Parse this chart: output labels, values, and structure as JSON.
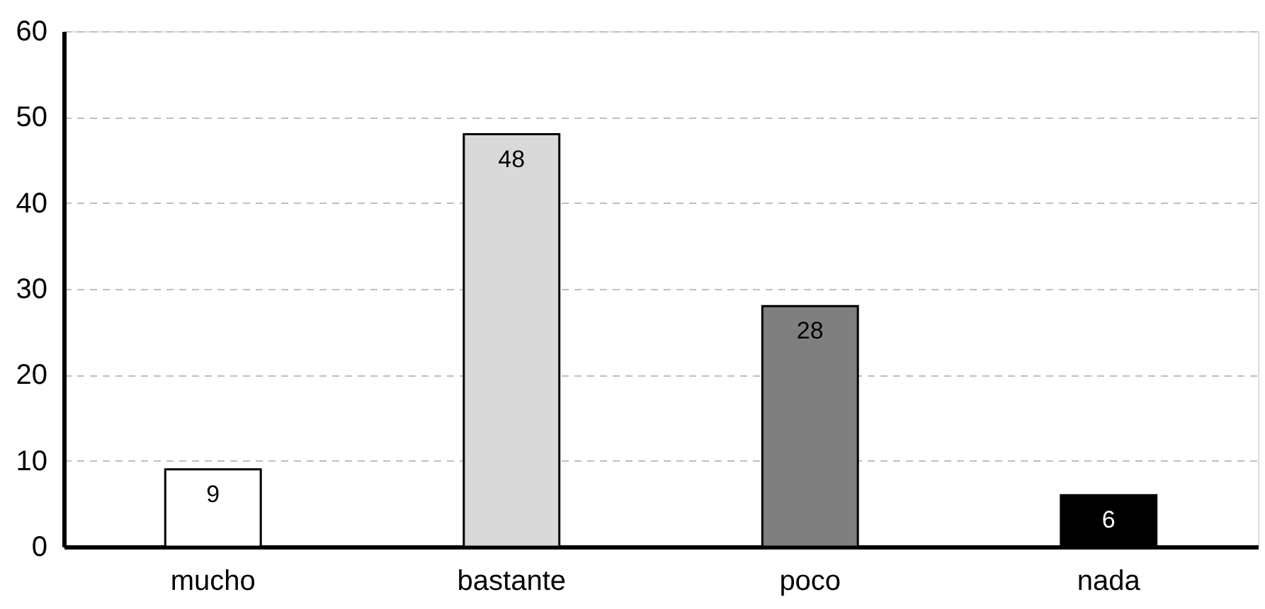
{
  "chart_data": {
    "type": "bar",
    "categories": [
      "mucho",
      "bastante",
      "poco",
      "nada"
    ],
    "values": [
      9,
      48,
      28,
      6
    ],
    "colors": [
      "#ffffff",
      "#d9d9d9",
      "#7f7f7f",
      "#000000"
    ],
    "ylim": [
      0,
      60
    ],
    "yticks": [
      0,
      10,
      20,
      30,
      40,
      50,
      60
    ],
    "grid": "y",
    "data_labels": true
  }
}
